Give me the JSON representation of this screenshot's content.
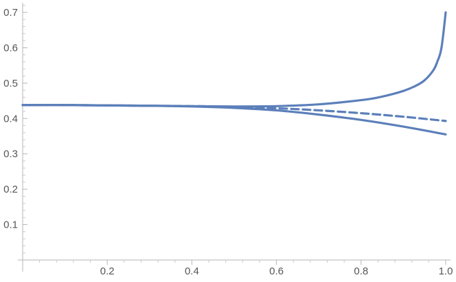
{
  "chart_data": {
    "type": "line",
    "title": "",
    "xlabel": "",
    "ylabel": "",
    "xlim": [
      0,
      1.0
    ],
    "ylim": [
      0,
      0.75
    ],
    "grid": false,
    "legend": "none",
    "x_ticks": [
      {
        "value": 0.2,
        "label": "0.2"
      },
      {
        "value": 0.4,
        "label": "0.4"
      },
      {
        "value": 0.6,
        "label": "0.6"
      },
      {
        "value": 0.8,
        "label": "0.8"
      },
      {
        "value": 1.0,
        "label": "1.0"
      }
    ],
    "y_ticks": [
      {
        "value": 0.1,
        "label": "0.1"
      },
      {
        "value": 0.2,
        "label": "0.2"
      },
      {
        "value": 0.3,
        "label": "0.3"
      },
      {
        "value": 0.4,
        "label": "0.4"
      },
      {
        "value": 0.5,
        "label": "0.5"
      },
      {
        "value": 0.6,
        "label": "0.6"
      },
      {
        "value": 0.7,
        "label": "0.7"
      }
    ],
    "series": [
      {
        "style": "solid",
        "color": "#5b7fba",
        "x": [
          0.0,
          0.1,
          0.2,
          0.3,
          0.4,
          0.5,
          0.6,
          0.7,
          0.8,
          0.85,
          0.9,
          0.93,
          0.95,
          0.97,
          0.98,
          0.99,
          1.0
        ],
        "y": [
          0.438,
          0.438,
          0.437,
          0.436,
          0.435,
          0.434,
          0.435,
          0.44,
          0.452,
          0.462,
          0.478,
          0.493,
          0.508,
          0.535,
          0.56,
          0.6,
          0.7
        ]
      },
      {
        "style": "dashed",
        "color": "#5b7fba",
        "x": [
          0.0,
          0.1,
          0.2,
          0.3,
          0.4,
          0.5,
          0.6,
          0.7,
          0.8,
          0.9,
          1.0
        ],
        "y": [
          0.438,
          0.438,
          0.437,
          0.436,
          0.435,
          0.433,
          0.429,
          0.423,
          0.415,
          0.405,
          0.393
        ]
      },
      {
        "style": "solid",
        "color": "#5b7fba",
        "x": [
          0.0,
          0.1,
          0.2,
          0.3,
          0.4,
          0.5,
          0.6,
          0.7,
          0.8,
          0.9,
          1.0
        ],
        "y": [
          0.438,
          0.438,
          0.437,
          0.436,
          0.434,
          0.43,
          0.423,
          0.411,
          0.396,
          0.377,
          0.355
        ]
      }
    ]
  }
}
